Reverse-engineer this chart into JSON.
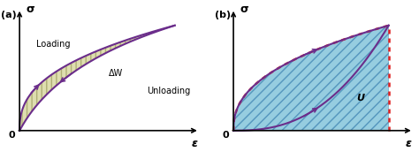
{
  "fig_width": 4.74,
  "fig_height": 1.72,
  "dpi": 100,
  "background_color": "#ffffff",
  "curve_color": "#6B2D8B",
  "curve_lw": 1.5,
  "fill_color_a": "#c8c87a",
  "fill_color_b": "#6ab8d4",
  "fill_hatch_a": "|||",
  "fill_hatch_b": "///",
  "dot_color": "#e02020",
  "label_a": "(a)",
  "label_b": "(b)",
  "sigma_label": "σ",
  "epsilon_label": "ε",
  "loading_label": "Loading",
  "unloading_label": "Unloading",
  "delta_w_label": "ΔW",
  "u_label": "U",
  "zero_label": "0",
  "load_exp": 2.5,
  "unload_shift": 0.12
}
